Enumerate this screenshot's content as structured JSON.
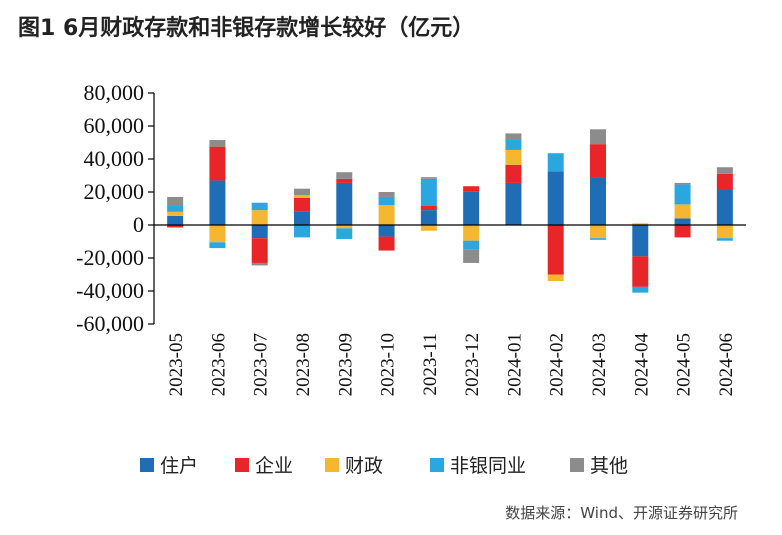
{
  "chart_data": {
    "type": "bar",
    "stacked": true,
    "title": "图1  6月财政存款和非银存款增长较好（亿元）",
    "xlabel": "",
    "ylabel": "",
    "ylim": [
      -60000,
      80000
    ],
    "y_ticks": [
      -60000,
      -40000,
      -20000,
      0,
      20000,
      40000,
      60000,
      80000
    ],
    "y_tick_labels": [
      "-60,000",
      "-40,000",
      "-20,000",
      "0",
      "20,000",
      "40,000",
      "60,000",
      "80,000"
    ],
    "grid": false,
    "legend_position": "bottom",
    "categories": [
      "2023-05",
      "2023-06",
      "2023-07",
      "2023-08",
      "2023-09",
      "2023-10",
      "2023-11",
      "2023-12",
      "2024-01",
      "2024-02",
      "2024-03",
      "2024-04",
      "2024-05",
      "2024-06"
    ],
    "series": [
      {
        "name": "住户",
        "color": "#1f6eb5",
        "values": [
          5500,
          27000,
          -8000,
          8000,
          25500,
          -7000,
          9000,
          20500,
          25500,
          32500,
          28500,
          -19000,
          4000,
          21500
        ]
      },
      {
        "name": "企业",
        "color": "#e8262a",
        "values": [
          -1500,
          20500,
          -15000,
          8500,
          2500,
          -8500,
          2500,
          3000,
          11000,
          -30000,
          20500,
          -18500,
          -7500,
          9500
        ]
      },
      {
        "name": "财政",
        "color": "#f5b731",
        "values": [
          2500,
          -10500,
          9000,
          1500,
          -2000,
          12000,
          -3500,
          -9500,
          9000,
          -4000,
          -8000,
          1000,
          8500,
          -8000
        ]
      },
      {
        "name": "非银同业",
        "color": "#2aa7df",
        "values": [
          3500,
          -3500,
          4500,
          -7500,
          -6500,
          5000,
          16500,
          -5500,
          6000,
          11000,
          -1000,
          -3500,
          12000,
          -1500
        ]
      },
      {
        "name": "其他",
        "color": "#8c8c8c",
        "values": [
          5500,
          4000,
          -1500,
          4000,
          4000,
          3000,
          1000,
          -8000,
          4000,
          0,
          9000,
          0,
          1000,
          4000
        ]
      }
    ]
  },
  "source": "数据来源：Wind、开源证券研究所"
}
